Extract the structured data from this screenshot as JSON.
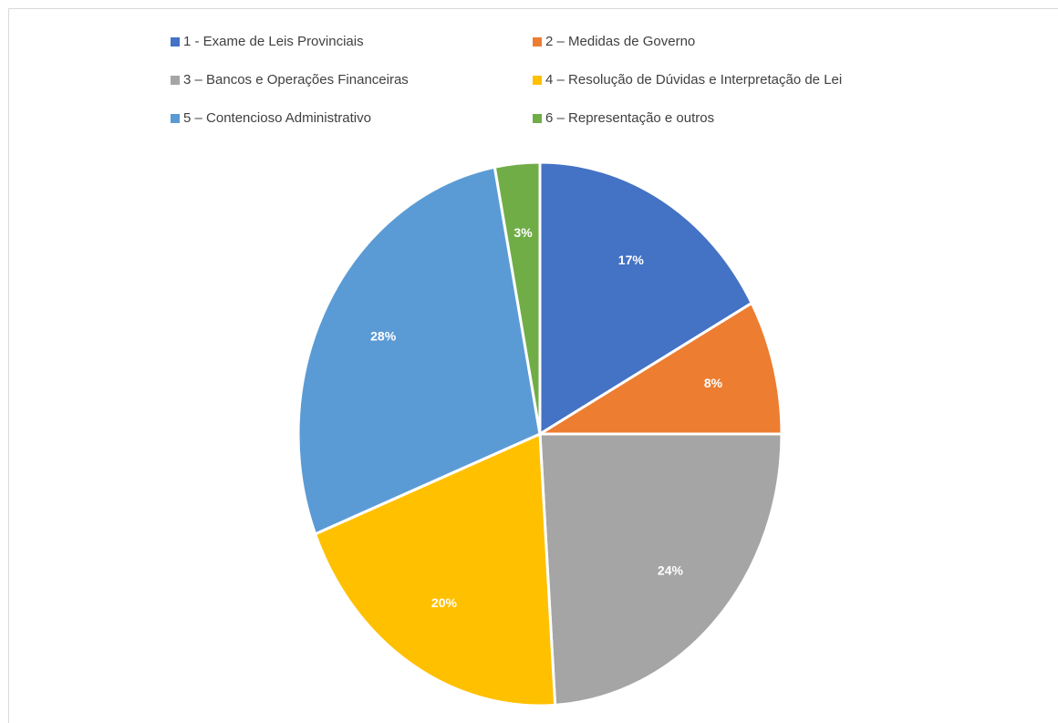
{
  "chart_data": {
    "type": "pie",
    "categories": [
      "1 - Exame de Leis Provinciais",
      "2 – Medidas de Governo",
      "3 – Bancos e Operações Financeiras",
      "4 – Resolução de Dúvidas e Interpretação de Lei",
      "5 – Contencioso Administrativo",
      "6 – Representação e outros"
    ],
    "values": [
      17,
      8,
      24,
      20,
      28,
      3
    ],
    "value_labels": [
      "17%",
      "8%",
      "24%",
      "20%",
      "28%",
      "3%"
    ],
    "colors": [
      "#4472c4",
      "#ed7d31",
      "#a5a5a5",
      "#ffc000",
      "#5b9bd5",
      "#70ad47"
    ],
    "legend": "top"
  }
}
